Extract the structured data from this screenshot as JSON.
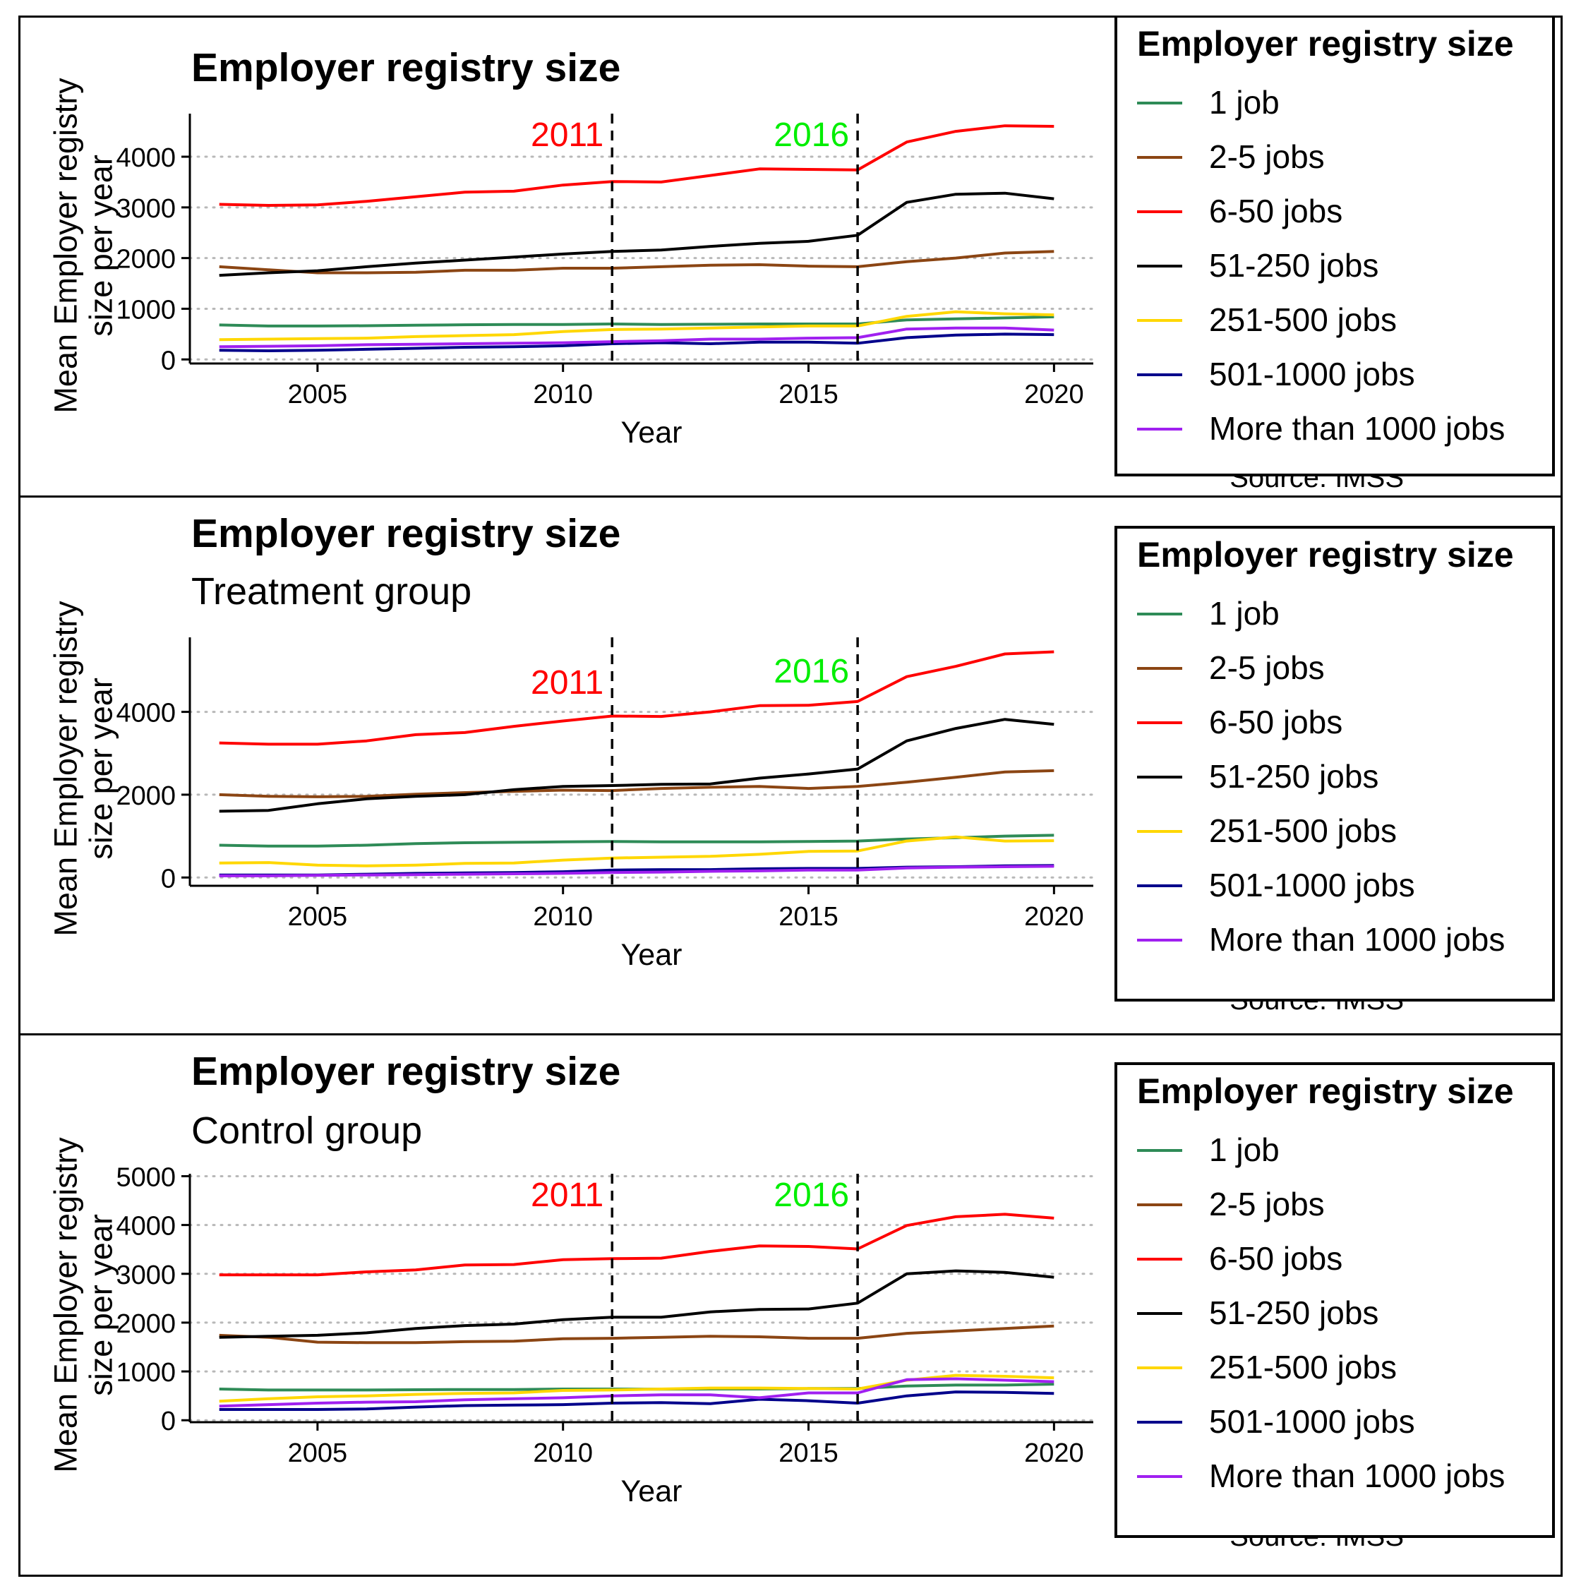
{
  "chart_data": [
    {
      "type": "line",
      "title": "Employer registry size",
      "subtitle": "",
      "xlabel": "Year",
      "ylabel": "Mean Employer registry size per year",
      "ylabel_lines": [
        "Mean Employer registry",
        "size per year"
      ],
      "caption": "Source: IMSS",
      "xlim": [
        2002.4,
        2020.8
      ],
      "ylim": [
        -80,
        4850
      ],
      "xticks": [
        2005,
        2010,
        2015,
        2020
      ],
      "yticks": [
        0,
        1000,
        2000,
        3000,
        4000
      ],
      "grid": "horizontal dotted",
      "legend_position": "right",
      "legend_title": "Employer registry size",
      "annotations": [
        {
          "label": "2011",
          "x": 2011,
          "color": "#FF0000"
        },
        {
          "label": "2016",
          "x": 2016,
          "color": "#00EE00"
        }
      ],
      "x": [
        2003,
        2004,
        2005,
        2006,
        2007,
        2008,
        2009,
        2010,
        2011,
        2012,
        2013,
        2014,
        2015,
        2016,
        2017,
        2018,
        2019,
        2020
      ],
      "series": [
        {
          "name": "1 job",
          "color": "#2E8B57",
          "values": [
            680,
            660,
            660,
            665,
            675,
            685,
            690,
            690,
            700,
            690,
            695,
            700,
            700,
            700,
            780,
            800,
            820,
            840
          ]
        },
        {
          "name": "2-5 jobs",
          "color": "#8B4513",
          "values": [
            1830,
            1770,
            1710,
            1710,
            1720,
            1760,
            1760,
            1800,
            1800,
            1830,
            1860,
            1870,
            1840,
            1830,
            1930,
            2000,
            2100,
            2130
          ]
        },
        {
          "name": "6-50 jobs",
          "color": "#FF0000",
          "values": [
            3060,
            3040,
            3050,
            3120,
            3210,
            3300,
            3320,
            3440,
            3510,
            3500,
            3630,
            3760,
            3750,
            3740,
            4290,
            4500,
            4610,
            4600
          ]
        },
        {
          "name": "51-250 jobs",
          "color": "#000000",
          "values": [
            1660,
            1710,
            1750,
            1830,
            1900,
            1960,
            2020,
            2080,
            2130,
            2160,
            2230,
            2290,
            2330,
            2450,
            3100,
            3260,
            3280,
            3170
          ]
        },
        {
          "name": "251-500 jobs",
          "color": "#FFD700",
          "values": [
            390,
            400,
            410,
            420,
            450,
            470,
            490,
            550,
            590,
            600,
            620,
            640,
            660,
            660,
            850,
            940,
            900,
            880
          ]
        },
        {
          "name": "501-1000 jobs",
          "color": "#00008B",
          "values": [
            180,
            170,
            180,
            200,
            220,
            240,
            250,
            270,
            310,
            330,
            310,
            340,
            340,
            320,
            430,
            480,
            500,
            490
          ]
        },
        {
          "name": "More than 1000 jobs",
          "color": "#A020F0",
          "values": [
            250,
            260,
            270,
            290,
            300,
            310,
            320,
            330,
            350,
            370,
            400,
            400,
            420,
            430,
            600,
            620,
            620,
            580
          ]
        }
      ]
    },
    {
      "type": "line",
      "title": "Employer registry size",
      "subtitle": "Treatment group",
      "xlabel": "Year",
      "ylabel": "Mean Employer registry size per year",
      "ylabel_lines": [
        "Mean Employer registry",
        "size per year"
      ],
      "caption": "Source: IMSS",
      "xlim": [
        2002.4,
        2020.8
      ],
      "ylim": [
        -200,
        5800
      ],
      "xticks": [
        2005,
        2010,
        2015,
        2020
      ],
      "yticks": [
        0,
        2000,
        4000
      ],
      "grid": "horizontal dotted",
      "legend_position": "right",
      "legend_title": "Employer registry size",
      "annotations": [
        {
          "label": "2011",
          "x": 2011,
          "color": "#FF0000"
        },
        {
          "label": "2016",
          "x": 2016,
          "color": "#00EE00"
        }
      ],
      "x": [
        2003,
        2004,
        2005,
        2006,
        2007,
        2008,
        2009,
        2010,
        2011,
        2012,
        2013,
        2014,
        2015,
        2016,
        2017,
        2018,
        2019,
        2020
      ],
      "series": [
        {
          "name": "1 job",
          "color": "#2E8B57",
          "values": [
            780,
            760,
            760,
            780,
            820,
            840,
            850,
            860,
            870,
            860,
            860,
            860,
            870,
            880,
            930,
            960,
            1000,
            1020
          ]
        },
        {
          "name": "2-5 jobs",
          "color": "#8B4513",
          "values": [
            2000,
            1960,
            1950,
            1960,
            2010,
            2050,
            2080,
            2110,
            2100,
            2150,
            2180,
            2200,
            2150,
            2200,
            2300,
            2420,
            2550,
            2580
          ]
        },
        {
          "name": "6-50 jobs",
          "color": "#FF0000",
          "values": [
            3250,
            3220,
            3220,
            3300,
            3450,
            3500,
            3650,
            3780,
            3900,
            3890,
            4000,
            4150,
            4160,
            4250,
            4850,
            5100,
            5400,
            5450
          ]
        },
        {
          "name": "51-250 jobs",
          "color": "#000000",
          "values": [
            1600,
            1620,
            1780,
            1900,
            1960,
            2000,
            2120,
            2200,
            2220,
            2250,
            2260,
            2400,
            2500,
            2620,
            3300,
            3600,
            3820,
            3700
          ]
        },
        {
          "name": "251-500 jobs",
          "color": "#FFD700",
          "values": [
            350,
            360,
            300,
            280,
            300,
            340,
            350,
            420,
            470,
            490,
            510,
            560,
            630,
            640,
            880,
            980,
            880,
            890
          ]
        },
        {
          "name": "501-1000 jobs",
          "color": "#00008B",
          "values": [
            60,
            60,
            60,
            80,
            100,
            110,
            120,
            140,
            180,
            190,
            190,
            210,
            220,
            220,
            250,
            260,
            280,
            290
          ]
        },
        {
          "name": "More than 1000 jobs",
          "color": "#A020F0",
          "values": [
            40,
            40,
            50,
            60,
            70,
            80,
            90,
            100,
            120,
            130,
            150,
            160,
            180,
            180,
            230,
            250,
            260,
            270
          ]
        }
      ]
    },
    {
      "type": "line",
      "title": "Employer registry size",
      "subtitle": "Control group",
      "xlabel": "Year",
      "ylabel": "Mean Employer registry size per year",
      "ylabel_lines": [
        "Mean Employer registry",
        "size per year"
      ],
      "caption": "Source: IMSS",
      "xlim": [
        2002.4,
        2020.8
      ],
      "ylim": [
        -40,
        5050
      ],
      "xticks": [
        2005,
        2010,
        2015,
        2020
      ],
      "yticks": [
        0,
        1000,
        2000,
        3000,
        4000,
        5000
      ],
      "grid": "horizontal dotted",
      "legend_position": "right",
      "legend_title": "Employer registry size",
      "annotations": [
        {
          "label": "2011",
          "x": 2011,
          "color": "#FF0000"
        },
        {
          "label": "2016",
          "x": 2016,
          "color": "#00EE00"
        }
      ],
      "x": [
        2003,
        2004,
        2005,
        2006,
        2007,
        2008,
        2009,
        2010,
        2011,
        2012,
        2013,
        2014,
        2015,
        2016,
        2017,
        2018,
        2019,
        2020
      ],
      "series": [
        {
          "name": "1 job",
          "color": "#2E8B57",
          "values": [
            640,
            620,
            620,
            620,
            625,
            630,
            630,
            640,
            640,
            635,
            640,
            640,
            650,
            650,
            700,
            720,
            720,
            740
          ]
        },
        {
          "name": "2-5 jobs",
          "color": "#8B4513",
          "values": [
            1740,
            1700,
            1600,
            1590,
            1590,
            1610,
            1620,
            1670,
            1680,
            1700,
            1720,
            1710,
            1680,
            1680,
            1780,
            1830,
            1880,
            1930
          ]
        },
        {
          "name": "6-50 jobs",
          "color": "#FF0000",
          "values": [
            2980,
            2980,
            2980,
            3040,
            3080,
            3180,
            3190,
            3290,
            3310,
            3320,
            3460,
            3570,
            3560,
            3510,
            3990,
            4170,
            4220,
            4140
          ]
        },
        {
          "name": "51-250 jobs",
          "color": "#000000",
          "values": [
            1700,
            1720,
            1740,
            1790,
            1880,
            1940,
            1970,
            2060,
            2110,
            2110,
            2220,
            2270,
            2280,
            2400,
            3000,
            3060,
            3030,
            2930
          ]
        },
        {
          "name": "251-500 jobs",
          "color": "#FFD700",
          "values": [
            390,
            440,
            480,
            500,
            530,
            550,
            560,
            610,
            620,
            640,
            660,
            660,
            650,
            640,
            820,
            920,
            900,
            870
          ]
        },
        {
          "name": "501-1000 jobs",
          "color": "#00008B",
          "values": [
            220,
            220,
            220,
            230,
            270,
            300,
            310,
            320,
            350,
            360,
            340,
            430,
            400,
            350,
            500,
            580,
            570,
            550
          ]
        },
        {
          "name": "More than 1000 jobs",
          "color": "#A020F0",
          "values": [
            290,
            320,
            350,
            370,
            380,
            420,
            440,
            460,
            500,
            520,
            520,
            460,
            560,
            560,
            830,
            850,
            820,
            790
          ]
        }
      ]
    }
  ]
}
